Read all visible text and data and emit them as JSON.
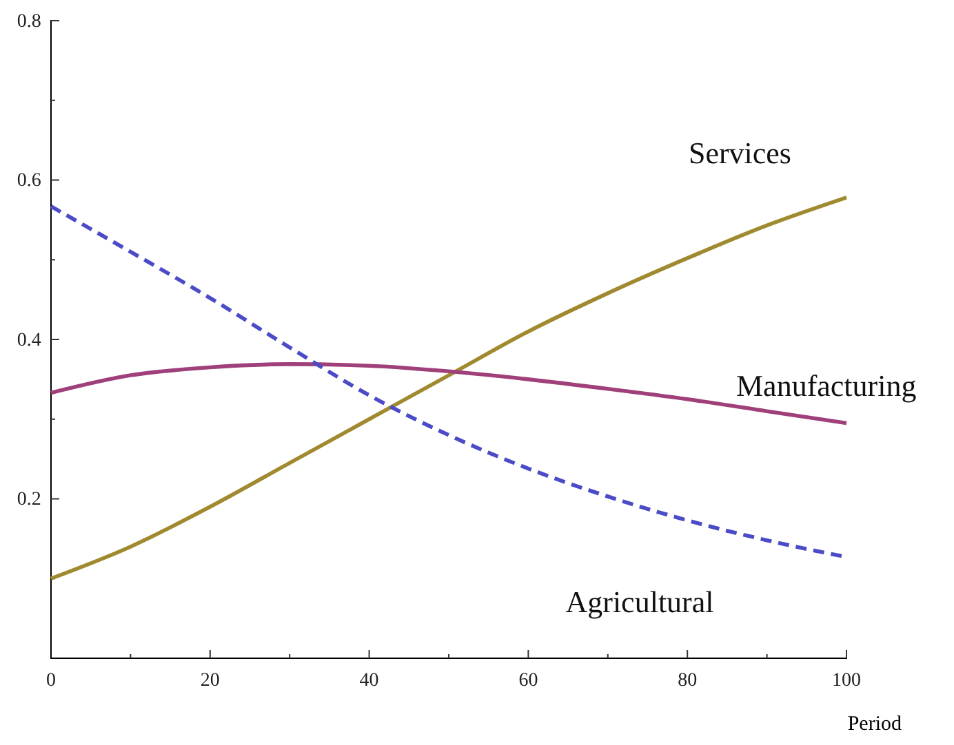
{
  "chart_data": {
    "type": "line",
    "xlabel": "Period",
    "x": [
      0,
      10,
      20,
      30,
      40,
      50,
      60,
      70,
      80,
      90,
      100
    ],
    "series": [
      {
        "name": "Services",
        "color": "#a08a30",
        "line_style": "solid",
        "values": [
          0.1,
          0.14,
          0.19,
          0.245,
          0.3,
          0.355,
          0.41,
          0.458,
          0.502,
          0.543,
          0.578
        ]
      },
      {
        "name": "Manufacturing",
        "color": "#a0407a",
        "line_style": "solid",
        "values": [
          0.333,
          0.355,
          0.365,
          0.369,
          0.367,
          0.36,
          0.35,
          0.338,
          0.325,
          0.31,
          0.295
        ]
      },
      {
        "name": "Agricultural",
        "color": "#4b4bc8",
        "line_style": "dashed",
        "values": [
          0.567,
          0.51,
          0.452,
          0.39,
          0.33,
          0.28,
          0.238,
          0.203,
          0.173,
          0.148,
          0.127
        ]
      }
    ],
    "xlim": [
      0,
      100
    ],
    "ylim": [
      0,
      0.8
    ],
    "xticks": [
      0,
      {
        "value": 10,
        "label": null
      },
      20,
      {
        "value": 30,
        "label": null
      },
      40,
      {
        "value": 50,
        "label": null
      },
      60,
      {
        "value": 70,
        "label": null
      },
      80,
      {
        "value": 90,
        "label": null
      },
      100
    ],
    "yticks": [
      {
        "value": 0.1,
        "label": null
      },
      0.2,
      {
        "value": 0.3,
        "label": null
      },
      0.4,
      {
        "value": 0.5,
        "label": null
      },
      0.6,
      {
        "value": 0.7,
        "label": null
      },
      0.8
    ],
    "grid": false,
    "marker": "none"
  }
}
